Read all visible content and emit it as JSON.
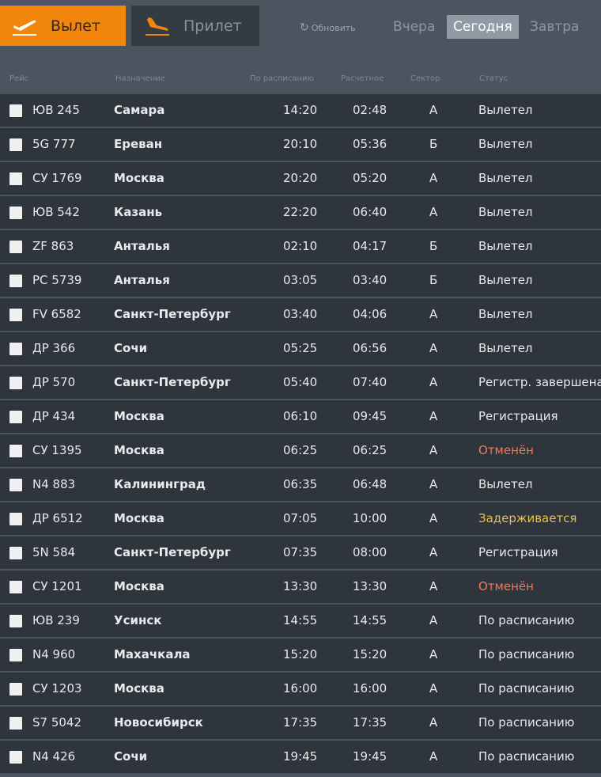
{
  "tabs": {
    "departure": "Вылет",
    "arrival": "Прилет"
  },
  "refresh": "Обновить",
  "days": {
    "yesterday": "Вчера",
    "today": "Сегодня",
    "tomorrow": "Завтра",
    "selected": "Сегодня"
  },
  "columns": [
    "Рейс",
    "Назначение",
    "По расписанию",
    "Расчетное",
    "Сектор",
    "Статус"
  ],
  "colors": {
    "accent": "#f2850c",
    "cancelled": "#f2785a",
    "delayed": "#e8c04a",
    "normal": "#e8eaec"
  },
  "flights": [
    {
      "flight": "ЮВ 245",
      "dest": "Самара",
      "sched": "14:20",
      "est": "02:48",
      "sector": "А",
      "status": "Вылетел",
      "state": "normal"
    },
    {
      "flight": "5G 777",
      "dest": "Ереван",
      "sched": "20:10",
      "est": "05:36",
      "sector": "Б",
      "status": "Вылетел",
      "state": "normal"
    },
    {
      "flight": "СУ 1769",
      "dest": "Москва",
      "sched": "20:20",
      "est": "05:20",
      "sector": "А",
      "status": "Вылетел",
      "state": "normal"
    },
    {
      "flight": "ЮВ 542",
      "dest": "Казань",
      "sched": "22:20",
      "est": "06:40",
      "sector": "А",
      "status": "Вылетел",
      "state": "normal"
    },
    {
      "flight": "ZF 863",
      "dest": "Анталья",
      "sched": "02:10",
      "est": "04:17",
      "sector": "Б",
      "status": "Вылетел",
      "state": "normal"
    },
    {
      "flight": "PC 5739",
      "dest": "Анталья",
      "sched": "03:05",
      "est": "03:40",
      "sector": "Б",
      "status": "Вылетел",
      "state": "normal"
    },
    {
      "flight": "FV 6582",
      "dest": "Санкт-Петербург",
      "sched": "03:40",
      "est": "04:06",
      "sector": "А",
      "status": "Вылетел",
      "state": "normal"
    },
    {
      "flight": "ДР 366",
      "dest": "Сочи",
      "sched": "05:25",
      "est": "06:56",
      "sector": "А",
      "status": "Вылетел",
      "state": "normal"
    },
    {
      "flight": "ДР 570",
      "dest": "Санкт-Петербург",
      "sched": "05:40",
      "est": "07:40",
      "sector": "А",
      "status": "Регистр. завершена",
      "state": "normal"
    },
    {
      "flight": "ДР 434",
      "dest": "Москва",
      "sched": "06:10",
      "est": "09:45",
      "sector": "А",
      "status": "Регистрация",
      "state": "normal"
    },
    {
      "flight": "СУ 1395",
      "dest": "Москва",
      "sched": "06:25",
      "est": "06:25",
      "sector": "А",
      "status": "Отменён",
      "state": "cancelled"
    },
    {
      "flight": "N4 883",
      "dest": "Калининград",
      "sched": "06:35",
      "est": "06:48",
      "sector": "А",
      "status": "Вылетел",
      "state": "normal"
    },
    {
      "flight": "ДР 6512",
      "dest": "Москва",
      "sched": "07:05",
      "est": "10:00",
      "sector": "А",
      "status": "Задерживается",
      "state": "delayed"
    },
    {
      "flight": "5N 584",
      "dest": "Санкт-Петербург",
      "sched": "07:35",
      "est": "08:00",
      "sector": "А",
      "status": "Регистрация",
      "state": "normal"
    },
    {
      "flight": "СУ 1201",
      "dest": "Москва",
      "sched": "13:30",
      "est": "13:30",
      "sector": "А",
      "status": "Отменён",
      "state": "cancelled"
    },
    {
      "flight": "ЮВ 239",
      "dest": "Усинск",
      "sched": "14:55",
      "est": "14:55",
      "sector": "А",
      "status": "По расписанию",
      "state": "normal"
    },
    {
      "flight": "N4 960",
      "dest": "Махачкала",
      "sched": "15:20",
      "est": "15:20",
      "sector": "А",
      "status": "По расписанию",
      "state": "normal"
    },
    {
      "flight": "СУ 1203",
      "dest": "Москва",
      "sched": "16:00",
      "est": "16:00",
      "sector": "А",
      "status": "По расписанию",
      "state": "normal"
    },
    {
      "flight": "S7 5042",
      "dest": "Новосибирск",
      "sched": "17:35",
      "est": "17:35",
      "sector": "А",
      "status": "По расписанию",
      "state": "normal"
    },
    {
      "flight": "N4 426",
      "dest": "Сочи",
      "sched": "19:45",
      "est": "19:45",
      "sector": "А",
      "status": "По расписанию",
      "state": "normal"
    }
  ]
}
